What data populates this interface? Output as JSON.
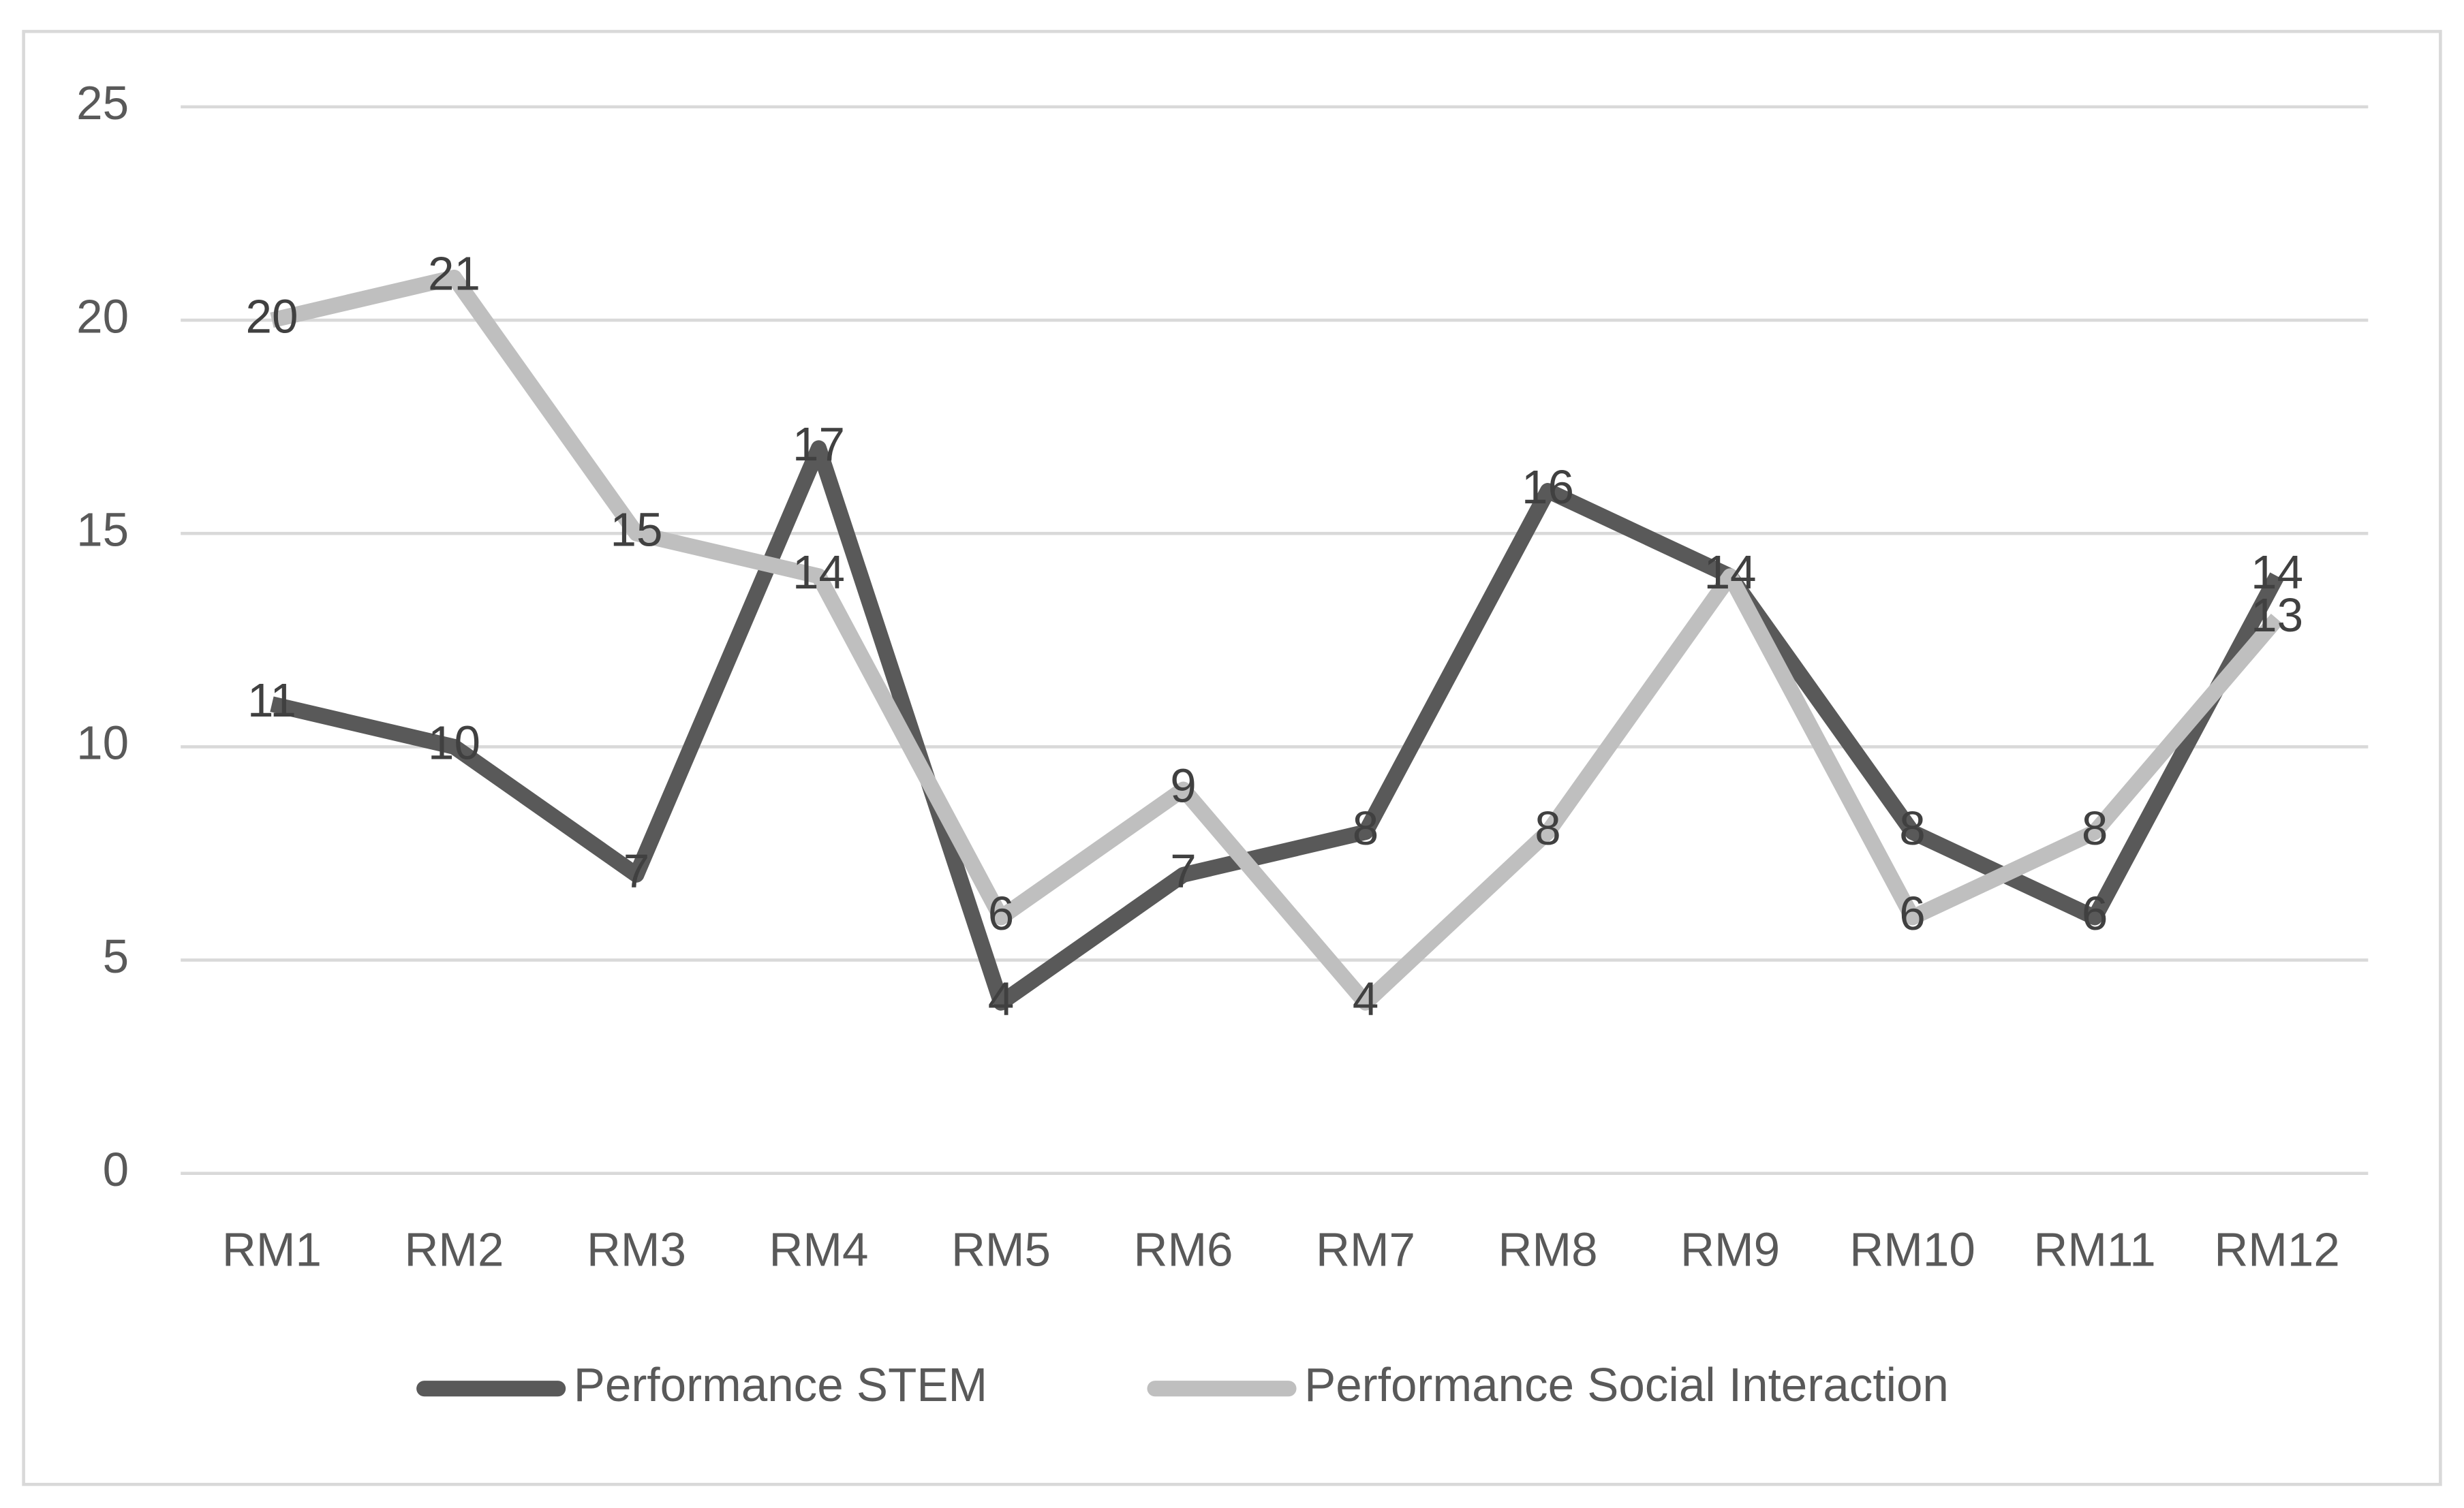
{
  "chart_data": {
    "type": "line",
    "categories": [
      "RM1",
      "RM2",
      "RM3",
      "RM4",
      "RM5",
      "RM6",
      "RM7",
      "RM8",
      "RM9",
      "RM10",
      "RM11",
      "RM12"
    ],
    "series": [
      {
        "name": "Performance STEM",
        "color": "#595959",
        "values": [
          11,
          10,
          7,
          17,
          4,
          7,
          8,
          16,
          14,
          8,
          6,
          14
        ]
      },
      {
        "name": "Performance Social Interaction",
        "color": "#bfbfbf",
        "values": [
          20,
          21,
          15,
          14,
          6,
          9,
          4,
          8,
          14,
          6,
          8,
          13
        ]
      }
    ],
    "ylim": [
      0,
      25
    ],
    "yticks": [
      0,
      5,
      10,
      15,
      20,
      25
    ],
    "grid": true,
    "legend": "bottom"
  }
}
